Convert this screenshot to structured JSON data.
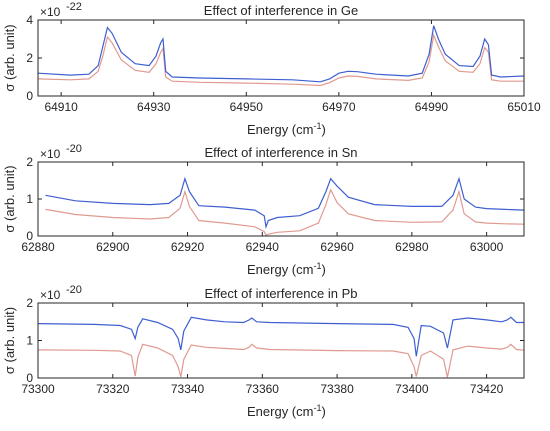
{
  "chart_data": [
    {
      "type": "line",
      "title": "Effect of interference in Ge",
      "xlabel": "Energy (cm",
      "xlabel_sup": "-1",
      "xlabel_close": ")",
      "ylabel": "σ (arb. unit)",
      "exponent_base": "×10",
      "exponent_power": "-22",
      "xlim": [
        64905,
        65010
      ],
      "ylim": [
        0,
        4
      ],
      "xticks": [
        64910,
        64930,
        64950,
        64970,
        64990,
        65010
      ],
      "yticks": [
        0,
        2,
        4
      ],
      "grid": false,
      "colors": {
        "upper": "#3f5fd0",
        "lower": "#e09a90"
      },
      "series": [
        {
          "x": [
            64905,
            64912,
            64916,
            64918,
            64919,
            64920,
            64921,
            64923,
            64926,
            64929,
            64930.5,
            64931.5,
            64932,
            64932.6,
            64934,
            64940,
            64950,
            64960,
            64966,
            64968,
            64970,
            64972,
            64974,
            64978,
            64985,
            64988,
            64989.5,
            64990.5,
            64991.5,
            64993,
            64996,
            64999,
            65000.5,
            65001.5,
            65002.3,
            65003,
            65005,
            65010
          ],
          "values": [
            1.2,
            1.1,
            1.15,
            1.6,
            2.6,
            3.6,
            3.3,
            2.3,
            1.7,
            1.6,
            2.1,
            2.8,
            3.0,
            1.3,
            1.0,
            0.95,
            0.9,
            0.85,
            0.75,
            0.9,
            1.2,
            1.3,
            1.28,
            1.15,
            1.05,
            1.2,
            2.2,
            3.7,
            3.0,
            2.2,
            1.6,
            1.55,
            2.1,
            3.0,
            2.7,
            1.1,
            1.0,
            1.05
          ]
        },
        {
          "x": [
            64905,
            64912,
            64916,
            64918,
            64919,
            64920,
            64921,
            64923,
            64926,
            64929,
            64930.5,
            64931.5,
            64932,
            64932.6,
            64934,
            64940,
            64950,
            64960,
            64966,
            64968,
            64970,
            64972,
            64974,
            64978,
            64985,
            64988,
            64989.5,
            64990.5,
            64991.5,
            64993,
            64996,
            64999,
            65000.5,
            65001.5,
            65002.3,
            65003,
            65005,
            65010
          ],
          "values": [
            0.9,
            0.85,
            0.9,
            1.3,
            2.1,
            3.1,
            2.8,
            1.9,
            1.35,
            1.25,
            1.7,
            2.3,
            2.5,
            1.0,
            0.78,
            0.72,
            0.68,
            0.62,
            0.55,
            0.7,
            0.95,
            1.05,
            1.03,
            0.9,
            0.82,
            0.95,
            1.8,
            3.2,
            2.6,
            1.85,
            1.3,
            1.25,
            1.7,
            2.55,
            2.3,
            0.85,
            0.78,
            0.78
          ]
        }
      ]
    },
    {
      "type": "line",
      "title": "Effect of interference in Sn",
      "xlabel": "Energy (cm",
      "xlabel_sup": "-1",
      "xlabel_close": ")",
      "ylabel": "σ (arb. unit)",
      "exponent_base": "×10",
      "exponent_power": "-20",
      "xlim": [
        62880,
        63010
      ],
      "ylim": [
        0,
        2
      ],
      "xticks": [
        62880,
        62900,
        62920,
        62940,
        62960,
        62980,
        63000
      ],
      "yticks": [
        0,
        1,
        2
      ],
      "grid": false,
      "colors": {
        "upper": "#3f5fd0",
        "lower": "#e09a90"
      },
      "series": [
        {
          "x": [
            62882,
            62890,
            62900,
            62910,
            62915,
            62918,
            62919.3,
            62920.5,
            62923,
            62930,
            62938,
            62940.5,
            62941,
            62941.6,
            62944,
            62950,
            62955,
            62957,
            62958.3,
            62960,
            62963,
            62970,
            62980,
            62988,
            62991,
            62992.6,
            62994,
            62997,
            63000,
            63005,
            63010
          ],
          "values": [
            1.1,
            0.95,
            0.88,
            0.85,
            0.88,
            1.1,
            1.55,
            1.2,
            0.82,
            0.78,
            0.7,
            0.55,
            0.25,
            0.42,
            0.5,
            0.55,
            0.75,
            1.2,
            1.55,
            1.35,
            1.05,
            0.85,
            0.8,
            0.8,
            1.1,
            1.55,
            1.0,
            0.78,
            0.74,
            0.72,
            0.7
          ]
        },
        {
          "x": [
            62882,
            62890,
            62900,
            62910,
            62915,
            62918,
            62919.3,
            62920.5,
            62923,
            62930,
            62938,
            62940.5,
            62941,
            62941.6,
            62944,
            62950,
            62955,
            62957,
            62958.3,
            62960,
            62963,
            62970,
            62980,
            62988,
            62991,
            62992.6,
            62994,
            62997,
            63000,
            63005,
            63010
          ],
          "values": [
            0.72,
            0.58,
            0.5,
            0.46,
            0.5,
            0.75,
            1.2,
            0.8,
            0.42,
            0.35,
            0.25,
            0.12,
            0.02,
            0.05,
            0.1,
            0.14,
            0.35,
            0.85,
            1.25,
            0.9,
            0.6,
            0.42,
            0.37,
            0.38,
            0.7,
            1.2,
            0.6,
            0.38,
            0.35,
            0.33,
            0.32
          ]
        }
      ]
    },
    {
      "type": "line",
      "title": "Effect of interference in Pb",
      "xlabel": "Energy (cm",
      "xlabel_sup": "-1",
      "xlabel_close": ")",
      "ylabel": "σ (arb. unit)",
      "exponent_base": "×10",
      "exponent_power": "-20",
      "xlim": [
        73300,
        73430
      ],
      "ylim": [
        0,
        2
      ],
      "xticks": [
        73300,
        73320,
        73340,
        73360,
        73380,
        73400,
        73420
      ],
      "yticks": [
        0,
        1,
        2
      ],
      "grid": false,
      "colors": {
        "upper": "#3f5fd0",
        "lower": "#e09a90"
      },
      "series": [
        {
          "x": [
            73300,
            73315,
            73322,
            73325,
            73326,
            73326.7,
            73328,
            73332,
            73336,
            73337.5,
            73338.2,
            73339,
            73341,
            73345,
            73350,
            73355,
            73356.5,
            73357.2,
            73358.5,
            73362,
            73380,
            73395,
            73399,
            73400.6,
            73401.2,
            73402.5,
            73405,
            73408.5,
            73409.5,
            73411,
            73415,
            73420,
            73424,
            73425.5,
            73426.5,
            73428,
            73430
          ],
          "values": [
            1.45,
            1.43,
            1.4,
            1.3,
            1.05,
            1.35,
            1.58,
            1.48,
            1.3,
            1.05,
            0.75,
            1.25,
            1.62,
            1.55,
            1.5,
            1.48,
            1.55,
            1.6,
            1.5,
            1.48,
            1.45,
            1.43,
            1.35,
            1.05,
            0.58,
            1.4,
            1.38,
            1.2,
            0.8,
            1.55,
            1.6,
            1.55,
            1.5,
            1.55,
            1.62,
            1.48,
            1.48
          ]
        },
        {
          "x": [
            73300,
            73315,
            73322,
            73325,
            73326,
            73326.7,
            73328,
            73332,
            73336,
            73337.5,
            73338.2,
            73339,
            73341,
            73345,
            73350,
            73355,
            73356.5,
            73357.2,
            73358.5,
            73362,
            73380,
            73395,
            73399,
            73400.6,
            73401.2,
            73402.5,
            73405,
            73408.5,
            73409.5,
            73411,
            73415,
            73420,
            73424,
            73425.5,
            73426.5,
            73428,
            73430
          ],
          "values": [
            0.75,
            0.74,
            0.72,
            0.6,
            0.05,
            0.55,
            0.9,
            0.8,
            0.6,
            0.3,
            0.03,
            0.5,
            0.88,
            0.82,
            0.79,
            0.76,
            0.82,
            0.9,
            0.8,
            0.76,
            0.73,
            0.72,
            0.65,
            0.3,
            0.04,
            0.6,
            0.72,
            0.5,
            0.02,
            0.75,
            0.85,
            0.8,
            0.77,
            0.82,
            0.9,
            0.76,
            0.74
          ]
        }
      ]
    }
  ]
}
